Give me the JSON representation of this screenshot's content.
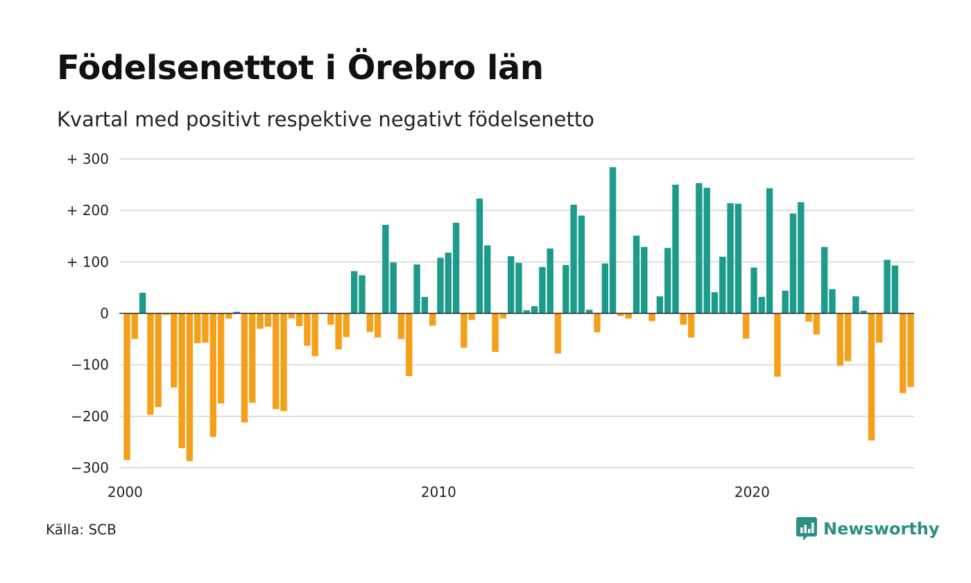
{
  "header": {
    "title": "Födelsenettot i Örebro län",
    "subtitle": "Kvartal med positivt respektive negativt födelsenetto"
  },
  "footer": {
    "source": "Källa: SCB",
    "brand": "Newsworthy",
    "brand_icon": "newsworthy-logo-icon"
  },
  "colors": {
    "positive": "#1c9a8a",
    "negative": "#f5a01a",
    "grid": "#dddddd",
    "baseline": "#222222",
    "brand": "#2b8f83"
  },
  "chart_data": {
    "type": "bar",
    "title": "Födelsenettot i Örebro län",
    "subtitle": "Kvartal med positivt respektive negativt födelsenetto",
    "xlabel": "",
    "ylabel": "",
    "ylim": [
      -300,
      300
    ],
    "yticks": [
      300,
      200,
      100,
      0,
      -100,
      -200,
      -300
    ],
    "ytick_labels": [
      "+ 300",
      "+ 200",
      "+ 100",
      "0",
      "−100",
      "−200",
      "−300"
    ],
    "xticks": [
      2000,
      2010,
      2020
    ],
    "xtick_labels": [
      "2000",
      "2010",
      "2020"
    ],
    "x_start": "2000 Q1",
    "x_end": "2025 Q2",
    "grid": true,
    "legend": "none",
    "categories": [
      "2000 Q1",
      "2000 Q2",
      "2000 Q3",
      "2000 Q4",
      "2001 Q1",
      "2001 Q2",
      "2001 Q3",
      "2001 Q4",
      "2002 Q1",
      "2002 Q2",
      "2002 Q3",
      "2002 Q4",
      "2003 Q1",
      "2003 Q2",
      "2003 Q3",
      "2003 Q4",
      "2004 Q1",
      "2004 Q2",
      "2004 Q3",
      "2004 Q4",
      "2005 Q1",
      "2005 Q2",
      "2005 Q3",
      "2005 Q4",
      "2006 Q1",
      "2006 Q2",
      "2006 Q3",
      "2006 Q4",
      "2007 Q1",
      "2007 Q2",
      "2007 Q3",
      "2007 Q4",
      "2008 Q1",
      "2008 Q2",
      "2008 Q3",
      "2008 Q4",
      "2009 Q1",
      "2009 Q2",
      "2009 Q3",
      "2009 Q4",
      "2010 Q1",
      "2010 Q2",
      "2010 Q3",
      "2010 Q4",
      "2011 Q1",
      "2011 Q2",
      "2011 Q3",
      "2011 Q4",
      "2012 Q1",
      "2012 Q2",
      "2012 Q3",
      "2012 Q4",
      "2013 Q1",
      "2013 Q2",
      "2013 Q3",
      "2013 Q4",
      "2014 Q1",
      "2014 Q2",
      "2014 Q3",
      "2014 Q4",
      "2015 Q1",
      "2015 Q2",
      "2015 Q3",
      "2015 Q4",
      "2016 Q1",
      "2016 Q2",
      "2016 Q3",
      "2016 Q4",
      "2017 Q1",
      "2017 Q2",
      "2017 Q3",
      "2017 Q4",
      "2018 Q1",
      "2018 Q2",
      "2018 Q3",
      "2018 Q4",
      "2019 Q1",
      "2019 Q2",
      "2019 Q3",
      "2019 Q4",
      "2020 Q1",
      "2020 Q2",
      "2020 Q3",
      "2020 Q4",
      "2021 Q1",
      "2021 Q2",
      "2021 Q3",
      "2021 Q4",
      "2022 Q1",
      "2022 Q2",
      "2022 Q3",
      "2022 Q4",
      "2023 Q1",
      "2023 Q2",
      "2023 Q3",
      "2023 Q4",
      "2024 Q1",
      "2024 Q2",
      "2024 Q3",
      "2024 Q4",
      "2025 Q1",
      "2025 Q2"
    ],
    "values": [
      -285,
      -50,
      40,
      -197,
      -182,
      -3,
      -144,
      -262,
      -287,
      -58,
      -57,
      -240,
      -175,
      -10,
      3,
      -212,
      -174,
      -30,
      -26,
      -186,
      -190,
      -10,
      -25,
      -63,
      -83,
      0,
      -22,
      -70,
      -46,
      82,
      74,
      -36,
      -47,
      172,
      99,
      -50,
      -122,
      95,
      32,
      -24,
      108,
      118,
      176,
      -67,
      -13,
      223,
      132,
      -75,
      -10,
      111,
      98,
      6,
      14,
      90,
      126,
      -78,
      94,
      211,
      190,
      7,
      -37,
      97,
      284,
      -5,
      -10,
      151,
      129,
      -15,
      33,
      127,
      250,
      -22,
      -47,
      253,
      244,
      41,
      110,
      214,
      213,
      -49,
      89,
      32,
      243,
      -123,
      44,
      194,
      216,
      -16,
      -41,
      129,
      47,
      -102,
      -93,
      33,
      5,
      -247,
      -57,
      104,
      93,
      -155,
      -143,
      0
    ]
  }
}
